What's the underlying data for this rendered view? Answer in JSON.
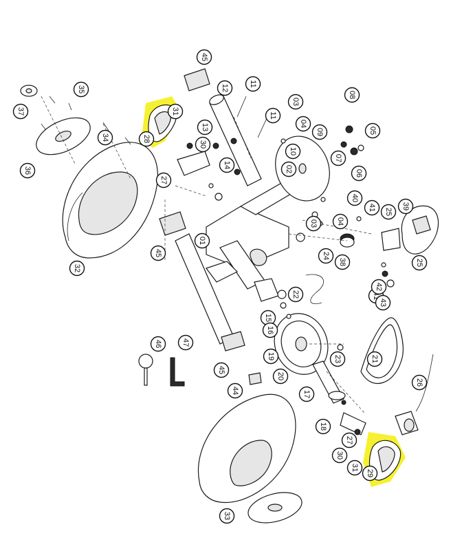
{
  "colors": {
    "highlight": "#f5f01a",
    "ink": "#111111",
    "background": "#ffffff"
  },
  "callouts": [
    {
      "id": "45a",
      "label": "45"
    },
    {
      "id": "12",
      "label": "12"
    },
    {
      "id": "11a",
      "label": "11"
    },
    {
      "id": "03a",
      "label": "03"
    },
    {
      "id": "08",
      "label": "08"
    },
    {
      "id": "35",
      "label": "35"
    },
    {
      "id": "37",
      "label": "37"
    },
    {
      "id": "36",
      "label": "36"
    },
    {
      "id": "34",
      "label": "34"
    },
    {
      "id": "28",
      "label": "28"
    },
    {
      "id": "31a",
      "label": "31"
    },
    {
      "id": "13",
      "label": "13"
    },
    {
      "id": "30a",
      "label": "30"
    },
    {
      "id": "14",
      "label": "14"
    },
    {
      "id": "11b",
      "label": "11"
    },
    {
      "id": "04a",
      "label": "04"
    },
    {
      "id": "09",
      "label": "09"
    },
    {
      "id": "05",
      "label": "05"
    },
    {
      "id": "10",
      "label": "10"
    },
    {
      "id": "07",
      "label": "07"
    },
    {
      "id": "06",
      "label": "06"
    },
    {
      "id": "02",
      "label": "02"
    },
    {
      "id": "27a",
      "label": "27"
    },
    {
      "id": "40",
      "label": "40"
    },
    {
      "id": "41a",
      "label": "41"
    },
    {
      "id": "25a",
      "label": "25"
    },
    {
      "id": "39",
      "label": "39"
    },
    {
      "id": "03b",
      "label": "03"
    },
    {
      "id": "04b",
      "label": "04"
    },
    {
      "id": "01",
      "label": "01"
    },
    {
      "id": "32",
      "label": "32"
    },
    {
      "id": "45b",
      "label": "45"
    },
    {
      "id": "38",
      "label": "38"
    },
    {
      "id": "25b",
      "label": "25"
    },
    {
      "id": "24",
      "label": "24"
    },
    {
      "id": "41b",
      "label": "41"
    },
    {
      "id": "42",
      "label": "42"
    },
    {
      "id": "43",
      "label": "43"
    },
    {
      "id": "22",
      "label": "22"
    },
    {
      "id": "15",
      "label": "15"
    },
    {
      "id": "16",
      "label": "16"
    },
    {
      "id": "19",
      "label": "19"
    },
    {
      "id": "21",
      "label": "21"
    },
    {
      "id": "23",
      "label": "23"
    },
    {
      "id": "20",
      "label": "20"
    },
    {
      "id": "46",
      "label": "46"
    },
    {
      "id": "47",
      "label": "47"
    },
    {
      "id": "45c",
      "label": "45"
    },
    {
      "id": "26",
      "label": "26"
    },
    {
      "id": "44",
      "label": "44"
    },
    {
      "id": "17",
      "label": "17"
    },
    {
      "id": "18",
      "label": "18"
    },
    {
      "id": "27b",
      "label": "27"
    },
    {
      "id": "30b",
      "label": "30"
    },
    {
      "id": "31b",
      "label": "31"
    },
    {
      "id": "29",
      "label": "29"
    },
    {
      "id": "33",
      "label": "33"
    }
  ]
}
